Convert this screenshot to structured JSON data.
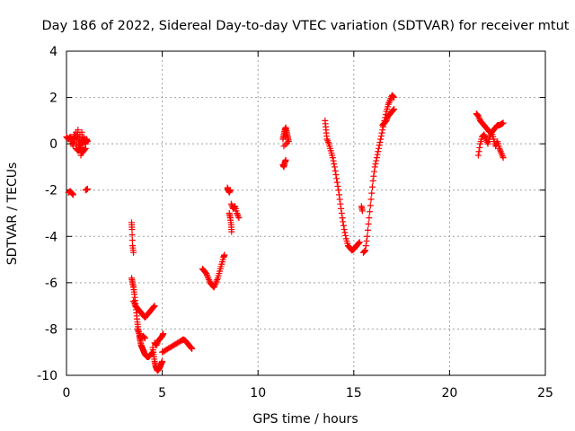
{
  "chart_data": {
    "type": "scatter",
    "title": "Day 186 of 2022, Sidereal Day-to-day VTEC variation (SDTVAR) for receiver mtut",
    "xlabel": "GPS time / hours",
    "ylabel": "SDTVAR / TECUs",
    "xlim": [
      0,
      25
    ],
    "ylim": [
      -10,
      4
    ],
    "xticks": [
      0,
      5,
      10,
      15,
      20,
      25
    ],
    "yticks": [
      -10,
      -8,
      -6,
      -4,
      -2,
      0,
      2,
      4
    ],
    "grid": true,
    "marker": "+",
    "color": "#ff0000",
    "series": [
      {
        "name": "SDTVAR",
        "segments": [
          [
            [
              0.0,
              0.3
            ],
            [
              0.1,
              0.2
            ],
            [
              0.2,
              0.3
            ],
            [
              0.3,
              0.1
            ],
            [
              0.35,
              -0.1
            ],
            [
              0.4,
              0.4
            ],
            [
              0.45,
              0.2
            ],
            [
              0.5,
              0.5
            ],
            [
              0.55,
              0.0
            ],
            [
              0.6,
              0.6
            ],
            [
              0.65,
              -0.3
            ],
            [
              0.7,
              0.4
            ],
            [
              0.75,
              -0.5
            ],
            [
              0.8,
              0.5
            ],
            [
              0.85,
              -0.2
            ],
            [
              0.9,
              0.3
            ],
            [
              0.95,
              0.1
            ],
            [
              1.0,
              0.0
            ],
            [
              1.05,
              0.2
            ],
            [
              1.1,
              0.1
            ]
          ],
          [
            [
              0.5,
              -0.2
            ],
            [
              0.6,
              -0.3
            ],
            [
              0.7,
              -0.2
            ],
            [
              0.8,
              -0.4
            ],
            [
              0.9,
              -0.3
            ],
            [
              1.0,
              -0.2
            ]
          ],
          [
            [
              0.1,
              -2.1
            ],
            [
              0.2,
              -2.05
            ],
            [
              0.3,
              -2.15
            ],
            [
              0.35,
              -2.2
            ]
          ],
          [
            [
              1.0,
              -2.0
            ],
            [
              1.1,
              -1.95
            ]
          ],
          [
            [
              3.4,
              -3.4
            ],
            [
              3.42,
              -3.7
            ],
            [
              3.45,
              -4.4
            ],
            [
              3.5,
              -4.7
            ]
          ],
          [
            [
              3.4,
              -5.8
            ],
            [
              3.45,
              -6.0
            ],
            [
              3.5,
              -6.2
            ],
            [
              3.55,
              -6.5
            ],
            [
              3.6,
              -6.9
            ],
            [
              3.65,
              -7.3
            ],
            [
              3.7,
              -7.7
            ],
            [
              3.75,
              -8.0
            ],
            [
              3.8,
              -8.3
            ],
            [
              3.85,
              -8.5
            ],
            [
              3.9,
              -8.7
            ],
            [
              3.95,
              -8.8
            ],
            [
              4.0,
              -8.9
            ],
            [
              4.05,
              -9.0
            ],
            [
              4.1,
              -9.1
            ],
            [
              4.2,
              -9.2
            ],
            [
              4.3,
              -9.2
            ],
            [
              4.4,
              -9.1
            ],
            [
              4.5,
              -9.0
            ]
          ],
          [
            [
              3.5,
              -6.8
            ],
            [
              3.6,
              -7.0
            ],
            [
              3.7,
              -7.1
            ],
            [
              3.8,
              -7.2
            ],
            [
              3.9,
              -7.3
            ],
            [
              4.0,
              -7.4
            ],
            [
              4.1,
              -7.5
            ],
            [
              4.2,
              -7.4
            ],
            [
              4.3,
              -7.3
            ],
            [
              4.4,
              -7.2
            ],
            [
              4.5,
              -7.1
            ],
            [
              4.6,
              -7.0
            ]
          ],
          [
            [
              3.7,
              -8.0
            ],
            [
              3.8,
              -8.2
            ],
            [
              3.9,
              -8.4
            ],
            [
              4.0,
              -8.3
            ],
            [
              4.1,
              -8.4
            ]
          ],
          [
            [
              4.5,
              -8.8
            ],
            [
              4.55,
              -9.1
            ],
            [
              4.6,
              -9.4
            ],
            [
              4.65,
              -9.6
            ],
            [
              4.7,
              -9.7
            ],
            [
              4.75,
              -9.8
            ],
            [
              4.8,
              -9.75
            ],
            [
              4.85,
              -9.7
            ],
            [
              4.9,
              -9.6
            ],
            [
              4.95,
              -9.5
            ],
            [
              5.0,
              -9.4
            ]
          ],
          [
            [
              4.6,
              -8.6
            ],
            [
              4.7,
              -8.7
            ],
            [
              4.8,
              -8.5
            ],
            [
              4.9,
              -8.4
            ],
            [
              5.0,
              -8.3
            ],
            [
              5.05,
              -8.2
            ]
          ],
          [
            [
              5.0,
              -9.0
            ],
            [
              5.2,
              -8.9
            ],
            [
              5.4,
              -8.8
            ],
            [
              5.6,
              -8.7
            ],
            [
              5.8,
              -8.6
            ],
            [
              6.0,
              -8.5
            ],
            [
              6.1,
              -8.45
            ],
            [
              6.2,
              -8.5
            ],
            [
              6.3,
              -8.6
            ],
            [
              6.4,
              -8.7
            ],
            [
              6.5,
              -8.8
            ],
            [
              6.55,
              -8.85
            ]
          ],
          [
            [
              7.1,
              -5.4
            ],
            [
              7.2,
              -5.5
            ],
            [
              7.3,
              -5.6
            ],
            [
              7.4,
              -5.8
            ],
            [
              7.5,
              -6.0
            ],
            [
              7.6,
              -6.1
            ],
            [
              7.7,
              -6.2
            ],
            [
              7.8,
              -6.0
            ],
            [
              7.9,
              -5.8
            ],
            [
              8.0,
              -5.5
            ],
            [
              8.1,
              -5.2
            ],
            [
              8.2,
              -4.9
            ],
            [
              8.25,
              -4.8
            ]
          ],
          [
            [
              8.4,
              -1.9
            ],
            [
              8.45,
              -2.0
            ],
            [
              8.5,
              -2.1
            ],
            [
              8.55,
              -2.0
            ]
          ],
          [
            [
              8.5,
              -3.0
            ],
            [
              8.55,
              -3.2
            ],
            [
              8.6,
              -3.5
            ],
            [
              8.62,
              -3.8
            ]
          ],
          [
            [
              8.6,
              -2.6
            ],
            [
              8.7,
              -2.8
            ],
            [
              8.8,
              -2.7
            ],
            [
              8.9,
              -3.0
            ],
            [
              9.0,
              -3.2
            ]
          ],
          [
            [
              11.3,
              -0.9
            ],
            [
              11.35,
              -1.0
            ],
            [
              11.4,
              -0.8
            ],
            [
              11.45,
              -0.7
            ]
          ],
          [
            [
              11.3,
              0.2
            ],
            [
              11.35,
              0.4
            ],
            [
              11.4,
              0.6
            ],
            [
              11.45,
              0.7
            ],
            [
              11.5,
              0.5
            ],
            [
              11.55,
              0.3
            ],
            [
              11.6,
              0.1
            ],
            [
              11.35,
              -0.1
            ]
          ],
          [
            [
              13.5,
              1.0
            ],
            [
              13.55,
              0.6
            ],
            [
              13.6,
              0.2
            ],
            [
              13.7,
              0.0
            ],
            [
              13.8,
              -0.3
            ],
            [
              13.9,
              -0.6
            ],
            [
              14.0,
              -1.0
            ],
            [
              14.1,
              -1.5
            ],
            [
              14.2,
              -2.0
            ],
            [
              14.3,
              -2.6
            ],
            [
              14.4,
              -3.2
            ],
            [
              14.5,
              -3.7
            ],
            [
              14.6,
              -4.1
            ],
            [
              14.7,
              -4.4
            ],
            [
              14.8,
              -4.5
            ],
            [
              14.9,
              -4.6
            ],
            [
              15.0,
              -4.55
            ],
            [
              15.1,
              -4.45
            ],
            [
              15.2,
              -4.35
            ],
            [
              15.3,
              -4.25
            ]
          ],
          [
            [
              15.4,
              -2.7
            ],
            [
              15.45,
              -2.9
            ]
          ],
          [
            [
              15.5,
              -4.7
            ],
            [
              15.6,
              -4.6
            ],
            [
              15.7,
              -4.0
            ],
            [
              15.8,
              -3.2
            ],
            [
              15.9,
              -2.4
            ],
            [
              16.0,
              -1.6
            ],
            [
              16.1,
              -1.0
            ],
            [
              16.2,
              -0.6
            ],
            [
              16.3,
              -0.2
            ],
            [
              16.4,
              0.2
            ],
            [
              16.5,
              0.6
            ],
            [
              16.6,
              1.0
            ],
            [
              16.7,
              1.4
            ],
            [
              16.8,
              1.7
            ],
            [
              16.9,
              1.9
            ],
            [
              17.0,
              2.1
            ],
            [
              17.1,
              2.0
            ]
          ],
          [
            [
              16.5,
              0.8
            ],
            [
              16.6,
              0.9
            ],
            [
              16.7,
              1.0
            ],
            [
              16.8,
              1.2
            ],
            [
              16.9,
              1.3
            ],
            [
              17.0,
              1.4
            ],
            [
              17.1,
              1.5
            ]
          ],
          [
            [
              21.4,
              1.3
            ],
            [
              21.5,
              1.2
            ],
            [
              21.6,
              1.0
            ],
            [
              21.7,
              0.9
            ],
            [
              21.8,
              0.8
            ],
            [
              21.9,
              0.7
            ],
            [
              22.0,
              0.6
            ],
            [
              22.1,
              0.5
            ],
            [
              22.2,
              0.5
            ],
            [
              22.3,
              0.6
            ],
            [
              22.4,
              0.7
            ],
            [
              22.5,
              0.8
            ],
            [
              22.6,
              0.8
            ],
            [
              22.7,
              0.85
            ],
            [
              22.8,
              0.9
            ]
          ],
          [
            [
              21.5,
              -0.5
            ],
            [
              21.6,
              0.0
            ],
            [
              21.7,
              0.3
            ],
            [
              21.8,
              0.4
            ],
            [
              21.9,
              0.2
            ],
            [
              22.0,
              0.0
            ],
            [
              22.1,
              0.3
            ],
            [
              22.2,
              0.5
            ],
            [
              22.3,
              0.2
            ],
            [
              22.4,
              -0.1
            ],
            [
              22.5,
              0.1
            ],
            [
              22.6,
              -0.2
            ],
            [
              22.7,
              -0.4
            ],
            [
              22.8,
              -0.6
            ]
          ]
        ]
      }
    ]
  }
}
